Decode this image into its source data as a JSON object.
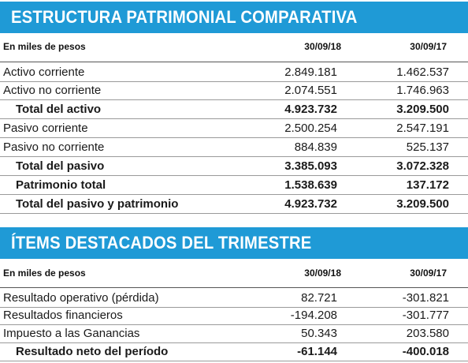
{
  "section1": {
    "title": "ESTRUCTURA PATRIMONIAL COMPARATIVA",
    "header": {
      "label": "En miles de pesos",
      "col1": "30/09/18",
      "col2": "30/09/17"
    },
    "rows": [
      {
        "label": "Activo corriente",
        "v1": "2.849.181",
        "v2": "1.462.537",
        "bold": false
      },
      {
        "label": "Activo no corriente",
        "v1": "2.074.551",
        "v2": "1.746.963",
        "bold": false
      },
      {
        "label": "Total del activo",
        "v1": "4.923.732",
        "v2": "3.209.500",
        "bold": true
      },
      {
        "label": "Pasivo corriente",
        "v1": "2.500.254",
        "v2": "2.547.191",
        "bold": false
      },
      {
        "label": "Pasivo no corriente",
        "v1": "884.839",
        "v2": "525.137",
        "bold": false
      },
      {
        "label": "Total del pasivo",
        "v1": "3.385.093",
        "v2": "3.072.328",
        "bold": true
      },
      {
        "label": "Patrimonio total",
        "v1": "1.538.639",
        "v2": "137.172",
        "bold": true
      },
      {
        "label": "Total del pasivo y patrimonio",
        "v1": "4.923.732",
        "v2": "3.209.500",
        "bold": true
      }
    ]
  },
  "section2": {
    "title": "ÍTEMS DESTACADOS DEL TRIMESTRE",
    "header": {
      "label": "En miles de pesos",
      "col1": "30/09/18",
      "col2": "30/09/17"
    },
    "rows": [
      {
        "label": "Resultado operativo (pérdida)",
        "v1": "82.721",
        "v2": "-301.821",
        "bold": false
      },
      {
        "label": "Resultados financieros",
        "v1": "-194.208",
        "v2": "-301.777",
        "bold": false
      },
      {
        "label": "Impuesto a las Ganancias",
        "v1": "50.343",
        "v2": "203.580",
        "bold": false
      },
      {
        "label": "Resultado neto del período",
        "v1": "-61.144",
        "v2": "-400.018",
        "bold": true
      }
    ]
  },
  "colors": {
    "banner": "#1f9ad6",
    "text": "#1a1a1a"
  }
}
